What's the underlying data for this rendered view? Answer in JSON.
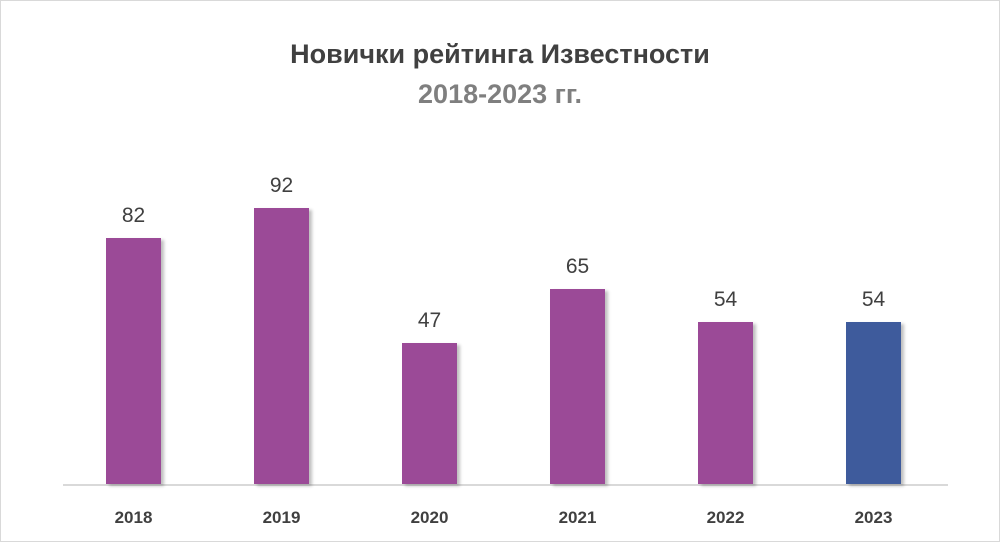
{
  "chart_data": {
    "type": "bar",
    "title": "Новички рейтинга Известности",
    "subtitle": "2018-2023 гг.",
    "categories": [
      "2018",
      "2019",
      "2020",
      "2021",
      "2022",
      "2023"
    ],
    "values": [
      82,
      92,
      47,
      65,
      54,
      54
    ],
    "colors": [
      "#9b4a97",
      "#9b4a97",
      "#9b4a97",
      "#9b4a97",
      "#9b4a97",
      "#3e5b9c"
    ],
    "xlabel": "",
    "ylabel": "",
    "ylim": [
      0,
      110
    ],
    "grid": false,
    "legend": "none",
    "data_labels": true
  }
}
